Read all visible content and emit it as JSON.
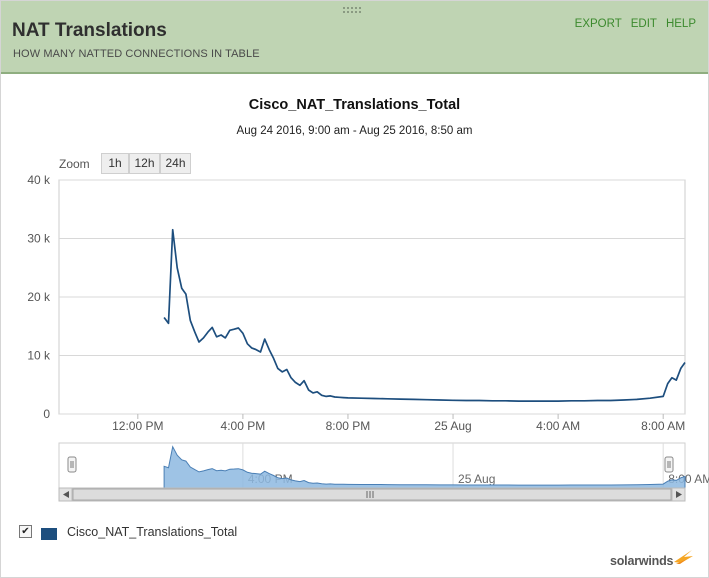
{
  "header": {
    "title": "NAT Translations",
    "subtitle": "HOW MANY NATTED CONNECTIONS IN TABLE",
    "export_label": "EXPORT",
    "edit_label": "EDIT",
    "help_label": "HELP"
  },
  "zoom": {
    "label": "Zoom",
    "buttons": [
      "1h",
      "12h",
      "24h"
    ]
  },
  "colors": {
    "header_bg": "#bfd4b3",
    "accent_link": "#3c8a2e",
    "series": "#1d4e7e",
    "navigator_fill": "#8db8e0"
  },
  "chart_data": {
    "type": "line",
    "title": "Cisco_NAT_Translations_Total",
    "subtitle": "Aug 24 2016, 9:00 am - Aug 25 2016, 8:50 am",
    "xlabel": "",
    "ylabel": "",
    "ylim": [
      0,
      40000
    ],
    "y_ticks": [
      {
        "value": 0,
        "label": "0"
      },
      {
        "value": 10000,
        "label": "10 k"
      },
      {
        "value": 20000,
        "label": "20 k"
      },
      {
        "value": 30000,
        "label": "30 k"
      },
      {
        "value": 40000,
        "label": "40 k"
      }
    ],
    "x_axis": {
      "min_hours": 9.0,
      "max_hours": 32.83
    },
    "x_ticks": [
      {
        "hours": 12,
        "label": "12:00 PM"
      },
      {
        "hours": 16,
        "label": "4:00 PM"
      },
      {
        "hours": 20,
        "label": "8:00 PM"
      },
      {
        "hours": 24,
        "label": "25 Aug"
      },
      {
        "hours": 28,
        "label": "4:00 AM"
      },
      {
        "hours": 32,
        "label": "8:00 AM"
      }
    ],
    "grid": true,
    "legend": "bottom-left",
    "series": [
      {
        "name": "Cisco_NAT_Translations_Total",
        "x_hours": [
          13.0,
          13.17,
          13.33,
          13.5,
          13.67,
          13.83,
          14.0,
          14.17,
          14.33,
          14.5,
          14.67,
          14.83,
          15.0,
          15.17,
          15.33,
          15.5,
          15.67,
          15.83,
          16.0,
          16.17,
          16.33,
          16.5,
          16.67,
          16.83,
          17.0,
          17.17,
          17.33,
          17.5,
          17.67,
          17.83,
          18.0,
          18.17,
          18.33,
          18.5,
          18.67,
          18.83,
          19.0,
          19.17,
          19.33,
          19.5,
          19.67,
          19.83,
          20.0,
          20.5,
          21.0,
          21.5,
          22.0,
          22.5,
          23.0,
          23.5,
          24.0,
          24.5,
          25.0,
          25.5,
          26.0,
          26.5,
          27.0,
          27.5,
          28.0,
          28.5,
          29.0,
          29.5,
          30.0,
          30.5,
          31.0,
          31.5,
          32.0,
          32.17,
          32.33,
          32.5,
          32.67,
          32.83
        ],
        "values": [
          16500,
          15500,
          31500,
          25000,
          21500,
          20500,
          16000,
          14000,
          12300,
          13000,
          14000,
          14800,
          13200,
          13500,
          13000,
          14300,
          14500,
          14700,
          13800,
          12000,
          11300,
          11000,
          10600,
          12800,
          11000,
          9500,
          7800,
          7200,
          7600,
          6200,
          5400,
          4900,
          5700,
          4100,
          3600,
          3800,
          3200,
          3000,
          3100,
          2900,
          2850,
          2800,
          2750,
          2700,
          2650,
          2600,
          2550,
          2500,
          2450,
          2400,
          2350,
          2300,
          2300,
          2250,
          2250,
          2200,
          2200,
          2200,
          2200,
          2250,
          2250,
          2300,
          2300,
          2400,
          2500,
          2700,
          3000,
          5200,
          6200,
          5800,
          7800,
          8800
        ]
      }
    ]
  },
  "navigator": {
    "labels": [
      {
        "hours": 16,
        "label": "4:00 PM"
      },
      {
        "hours": 24,
        "label": "25 Aug"
      },
      {
        "hours": 32,
        "label": "8:00 AM"
      }
    ]
  },
  "legend": {
    "items": [
      {
        "label": "Cisco_NAT_Translations_Total",
        "checked": true
      }
    ]
  },
  "footer": {
    "logo_text": "solarwinds"
  }
}
